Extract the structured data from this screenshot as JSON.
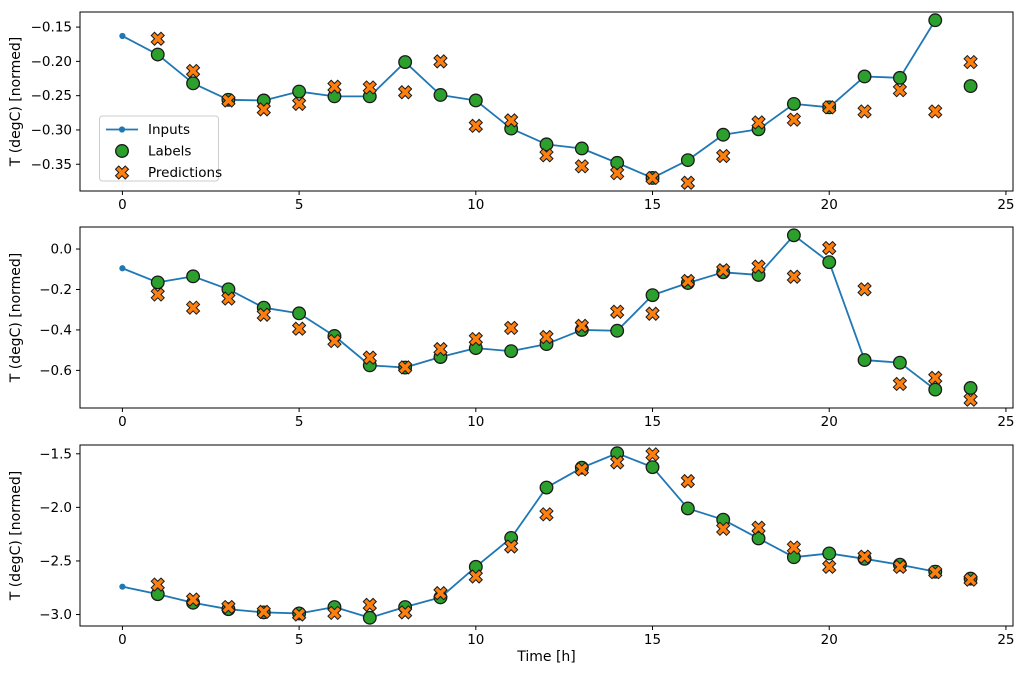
{
  "figure": {
    "xlabel": "Time [h]",
    "ylabel": "T (degC) [normed]",
    "colors": {
      "inputs_line": "#1f77b4",
      "labels_marker": "#2ca02c",
      "predictions_marker": "#ff7f0e",
      "marker_edge": "#1a1a1a",
      "spine": "#000000",
      "legend_border": "#cccccc",
      "legend_background": "#ffffff"
    },
    "legend": {
      "position": "center left of top subplot",
      "items": [
        {
          "label": "Inputs",
          "type": "line-with-dot"
        },
        {
          "label": "Labels",
          "type": "circle"
        },
        {
          "label": "Predictions",
          "type": "x-marker"
        }
      ]
    }
  },
  "chart_data": [
    {
      "type": "line",
      "title": "",
      "ylabel": "T (degC) [normed]",
      "xlim": [
        -1.2,
        25.2
      ],
      "ylim": [
        -0.389,
        -0.128
      ],
      "grid": false,
      "xtick_values": [
        0,
        5,
        10,
        15,
        20,
        25
      ],
      "xtick_labels": [
        "0",
        "5",
        "10",
        "15",
        "20",
        "25"
      ],
      "ytick_values": [
        -0.15,
        -0.2,
        -0.25,
        -0.3,
        -0.35
      ],
      "ytick_labels": [
        "−0.15",
        "−0.20",
        "−0.25",
        "−0.30",
        "−0.35"
      ],
      "series": [
        {
          "name": "Inputs",
          "x": [
            0,
            1,
            2,
            3,
            4,
            5,
            6,
            7,
            8,
            9,
            10,
            11,
            12,
            13,
            14,
            15,
            16,
            17,
            18,
            19,
            20,
            21,
            22,
            23
          ],
          "values": [
            -0.163,
            -0.19,
            -0.232,
            -0.256,
            -0.257,
            -0.244,
            -0.251,
            -0.251,
            -0.201,
            -0.249,
            -0.257,
            -0.298,
            -0.321,
            -0.327,
            -0.348,
            -0.37,
            -0.344,
            -0.307,
            -0.299,
            -0.262,
            -0.267,
            -0.222,
            -0.224,
            -0.14
          ]
        },
        {
          "name": "Labels",
          "x": [
            1,
            2,
            3,
            4,
            5,
            6,
            7,
            8,
            9,
            10,
            11,
            12,
            13,
            14,
            15,
            16,
            17,
            18,
            19,
            20,
            21,
            22,
            23,
            24
          ],
          "values": [
            -0.19,
            -0.232,
            -0.256,
            -0.257,
            -0.244,
            -0.251,
            -0.251,
            -0.201,
            -0.249,
            -0.257,
            -0.298,
            -0.321,
            -0.327,
            -0.348,
            -0.37,
            -0.344,
            -0.307,
            -0.299,
            -0.262,
            -0.267,
            -0.222,
            -0.224,
            -0.14,
            -0.236
          ]
        },
        {
          "name": "Predictions",
          "x": [
            1,
            2,
            3,
            4,
            5,
            6,
            7,
            8,
            9,
            10,
            11,
            12,
            13,
            14,
            15,
            16,
            17,
            18,
            19,
            20,
            21,
            22,
            23,
            24
          ],
          "values": [
            -0.167,
            -0.214,
            -0.257,
            -0.27,
            -0.262,
            -0.237,
            -0.238,
            -0.245,
            -0.2,
            -0.294,
            -0.286,
            -0.337,
            -0.353,
            -0.363,
            -0.37,
            -0.377,
            -0.338,
            -0.289,
            -0.285,
            -0.267,
            -0.273,
            -0.242,
            -0.273,
            -0.201
          ]
        }
      ]
    },
    {
      "type": "line",
      "title": "",
      "ylabel": "T (degC) [normed]",
      "xlim": [
        -1.2,
        25.2
      ],
      "ylim": [
        -0.786,
        0.109
      ],
      "grid": false,
      "xtick_values": [
        0,
        5,
        10,
        15,
        20,
        25
      ],
      "xtick_labels": [
        "0",
        "5",
        "10",
        "15",
        "20",
        "25"
      ],
      "ytick_values": [
        0.0,
        -0.2,
        -0.4,
        -0.6
      ],
      "ytick_labels": [
        "0.0",
        "−0.2",
        "−0.4",
        "−0.6"
      ],
      "series": [
        {
          "name": "Inputs",
          "x": [
            0,
            1,
            2,
            3,
            4,
            5,
            6,
            7,
            8,
            9,
            10,
            11,
            12,
            13,
            14,
            15,
            16,
            17,
            18,
            19,
            20,
            21,
            22,
            23
          ],
          "values": [
            -0.095,
            -0.165,
            -0.135,
            -0.199,
            -0.29,
            -0.318,
            -0.43,
            -0.575,
            -0.586,
            -0.534,
            -0.49,
            -0.505,
            -0.47,
            -0.4,
            -0.404,
            -0.228,
            -0.168,
            -0.115,
            -0.128,
            0.068,
            -0.065,
            -0.549,
            -0.562,
            -0.695
          ]
        },
        {
          "name": "Labels",
          "x": [
            1,
            2,
            3,
            4,
            5,
            6,
            7,
            8,
            9,
            10,
            11,
            12,
            13,
            14,
            15,
            16,
            17,
            18,
            19,
            20,
            21,
            22,
            23,
            24
          ],
          "values": [
            -0.165,
            -0.135,
            -0.199,
            -0.29,
            -0.318,
            -0.43,
            -0.575,
            -0.586,
            -0.534,
            -0.49,
            -0.505,
            -0.47,
            -0.4,
            -0.404,
            -0.228,
            -0.168,
            -0.115,
            -0.128,
            0.068,
            -0.065,
            -0.549,
            -0.562,
            -0.695,
            -0.687
          ]
        },
        {
          "name": "Predictions",
          "x": [
            1,
            2,
            3,
            4,
            5,
            6,
            7,
            8,
            9,
            10,
            11,
            12,
            13,
            14,
            15,
            16,
            17,
            18,
            19,
            20,
            21,
            22,
            23,
            24
          ],
          "values": [
            -0.225,
            -0.29,
            -0.245,
            -0.325,
            -0.394,
            -0.455,
            -0.537,
            -0.585,
            -0.495,
            -0.445,
            -0.39,
            -0.435,
            -0.38,
            -0.31,
            -0.32,
            -0.158,
            -0.105,
            -0.087,
            -0.137,
            0.005,
            -0.199,
            -0.667,
            -0.637,
            -0.745
          ]
        }
      ]
    },
    {
      "type": "line",
      "title": "",
      "ylabel": "T (degC) [normed]",
      "xlabel": "Time [h]",
      "xlim": [
        -1.2,
        25.2
      ],
      "ylim": [
        -3.107,
        -1.418
      ],
      "grid": false,
      "xtick_values": [
        0,
        5,
        10,
        15,
        20,
        25
      ],
      "xtick_labels": [
        "0",
        "5",
        "10",
        "15",
        "20",
        "25"
      ],
      "ytick_values": [
        -1.5,
        -2.0,
        -2.5,
        -3.0
      ],
      "ytick_labels": [
        "−1.5",
        "−2.0",
        "−2.5",
        "−3.0"
      ],
      "series": [
        {
          "name": "Inputs",
          "x": [
            0,
            1,
            2,
            3,
            4,
            5,
            6,
            7,
            8,
            9,
            10,
            11,
            12,
            13,
            14,
            15,
            16,
            17,
            18,
            19,
            20,
            21,
            22,
            23
          ],
          "values": [
            -2.74,
            -2.81,
            -2.89,
            -2.95,
            -2.98,
            -2.99,
            -2.93,
            -3.03,
            -2.93,
            -2.84,
            -2.555,
            -2.285,
            -1.815,
            -1.63,
            -1.495,
            -1.625,
            -2.01,
            -2.115,
            -2.29,
            -2.465,
            -2.43,
            -2.48,
            -2.535,
            -2.6
          ]
        },
        {
          "name": "Labels",
          "x": [
            1,
            2,
            3,
            4,
            5,
            6,
            7,
            8,
            9,
            10,
            11,
            12,
            13,
            14,
            15,
            16,
            17,
            18,
            19,
            20,
            21,
            22,
            23,
            24
          ],
          "values": [
            -2.81,
            -2.89,
            -2.95,
            -2.98,
            -2.99,
            -2.93,
            -3.03,
            -2.93,
            -2.84,
            -2.555,
            -2.285,
            -1.815,
            -1.63,
            -1.495,
            -1.625,
            -2.01,
            -2.115,
            -2.29,
            -2.465,
            -2.43,
            -2.48,
            -2.535,
            -2.6,
            -2.665
          ]
        },
        {
          "name": "Predictions",
          "x": [
            1,
            2,
            3,
            4,
            5,
            6,
            7,
            8,
            9,
            10,
            11,
            12,
            13,
            14,
            15,
            16,
            17,
            18,
            19,
            20,
            21,
            22,
            23,
            24
          ],
          "values": [
            -2.72,
            -2.86,
            -2.93,
            -2.975,
            -3.0,
            -2.985,
            -2.91,
            -2.98,
            -2.8,
            -2.645,
            -2.365,
            -2.065,
            -1.645,
            -1.58,
            -1.505,
            -1.755,
            -2.2,
            -2.19,
            -2.375,
            -2.555,
            -2.46,
            -2.555,
            -2.605,
            -2.675
          ]
        }
      ]
    }
  ]
}
